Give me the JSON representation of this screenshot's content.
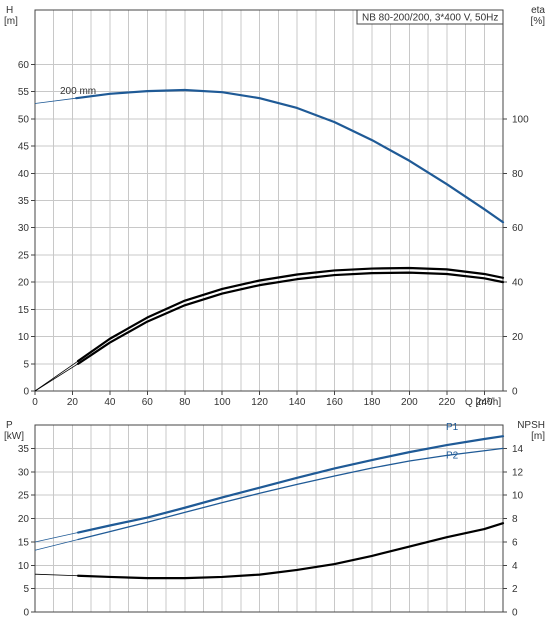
{
  "chart_data": [
    {
      "type": "line",
      "title": "NB 80-200/200, 3*400 V, 50Hz",
      "x_axis": {
        "label": "Q [m³/h]",
        "lim": [
          0,
          250
        ],
        "ticks": [
          0,
          20,
          40,
          60,
          80,
          100,
          120,
          140,
          160,
          180,
          200,
          220,
          240
        ]
      },
      "y_left": {
        "label_top": "H",
        "label_unit": "[m]",
        "lim": [
          0,
          70
        ],
        "ticks": [
          0,
          5,
          10,
          15,
          20,
          25,
          30,
          35,
          40,
          45,
          50,
          55,
          60
        ]
      },
      "y_right": {
        "label_top": "eta",
        "label_unit": "[%]",
        "lim": [
          0,
          140
        ],
        "ticks": [
          0,
          20,
          40,
          60,
          80,
          100
        ]
      },
      "grid": true,
      "series": [
        {
          "name": "200 mm",
          "axis": "left",
          "color": "#1f5a96",
          "extrapolated_x": [
            0,
            22
          ],
          "x": [
            22,
            40,
            60,
            80,
            100,
            120,
            140,
            160,
            180,
            200,
            220,
            240,
            250
          ],
          "y": [
            53.8,
            54.6,
            55.1,
            55.3,
            54.9,
            53.8,
            52.0,
            49.4,
            46.1,
            42.3,
            38.0,
            33.4,
            31.0
          ]
        },
        {
          "axis": "right",
          "color": "#000000",
          "extrapolated_x": [
            0,
            23
          ],
          "x": [
            23,
            40,
            60,
            80,
            100,
            120,
            140,
            160,
            180,
            200,
            220,
            240,
            250
          ],
          "y": [
            11.0,
            19.2,
            27.0,
            33.2,
            37.5,
            40.6,
            42.8,
            44.3,
            45.0,
            45.2,
            44.7,
            43.0,
            41.6
          ]
        },
        {
          "axis": "right",
          "color": "#000000",
          "extrapolated_x": [
            0,
            23
          ],
          "x": [
            23,
            40,
            60,
            80,
            100,
            120,
            140,
            160,
            180,
            200,
            220,
            240,
            250
          ],
          "y": [
            10.0,
            17.8,
            25.5,
            31.5,
            35.8,
            38.9,
            41.1,
            42.6,
            43.3,
            43.5,
            43.0,
            41.4,
            40.0
          ]
        }
      ]
    },
    {
      "type": "line",
      "x_axis": {
        "lim": [
          0,
          250
        ],
        "ticks": []
      },
      "y_left": {
        "label_top": "P",
        "label_unit": "[kW]",
        "lim": [
          0,
          40
        ],
        "ticks": [
          0,
          5,
          10,
          15,
          20,
          25,
          30,
          35
        ]
      },
      "y_right": {
        "label_top": "NPSH",
        "label_unit": "[m]",
        "lim": [
          0,
          16
        ],
        "ticks": [
          0,
          2,
          4,
          6,
          8,
          10,
          12,
          14
        ]
      },
      "grid": true,
      "series": [
        {
          "name": "P1",
          "axis": "left",
          "color": "#1f5a96",
          "extrapolated_x": [
            0,
            23
          ],
          "x": [
            23,
            40,
            60,
            80,
            100,
            120,
            140,
            160,
            180,
            200,
            220,
            240,
            250
          ],
          "y": [
            17.0,
            18.5,
            20.2,
            22.3,
            24.5,
            26.6,
            28.7,
            30.7,
            32.5,
            34.2,
            35.7,
            37.0,
            37.6
          ]
        },
        {
          "name": "P2",
          "axis": "left",
          "color": "#1f5a96",
          "extrapolated_x": [
            0,
            23
          ],
          "x": [
            23,
            40,
            60,
            80,
            100,
            120,
            140,
            160,
            180,
            200,
            220,
            240,
            250
          ],
          "y": [
            15.5,
            17.2,
            19.2,
            21.3,
            23.4,
            25.4,
            27.3,
            29.1,
            30.8,
            32.3,
            33.5,
            34.5,
            35.0
          ]
        },
        {
          "axis": "right",
          "color": "#000000",
          "extrapolated_x": [
            0,
            23
          ],
          "x": [
            23,
            40,
            60,
            80,
            100,
            120,
            140,
            160,
            180,
            200,
            220,
            240,
            250
          ],
          "y": [
            3.1,
            3.0,
            2.9,
            2.9,
            3.0,
            3.2,
            3.6,
            4.1,
            4.8,
            5.6,
            6.4,
            7.1,
            7.6
          ]
        }
      ]
    }
  ]
}
